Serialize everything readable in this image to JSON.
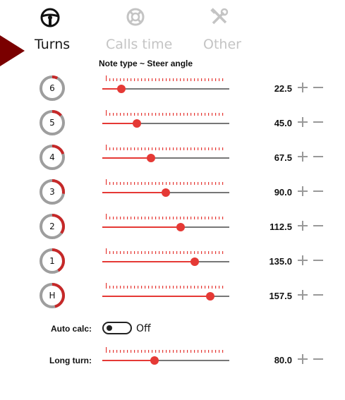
{
  "tabs": [
    {
      "label": "Turns",
      "icon": "steering-wheel-icon",
      "active": true
    },
    {
      "label": "Calls time",
      "icon": "lifebuoy-icon",
      "active": false
    },
    {
      "label": "Other",
      "icon": "tools-icon",
      "active": false
    }
  ],
  "section_title": "Note type ~ Steer angle",
  "colors": {
    "accent": "#e53935",
    "dark_red": "#b71c1c",
    "pointer": "#7a0000",
    "track": "#777777",
    "ring_gray": "#9e9e9e"
  },
  "turn_rows": [
    {
      "badge": "6",
      "value": "22.5",
      "fraction": 0.15
    },
    {
      "badge": "5",
      "value": "45.0",
      "fraction": 0.27
    },
    {
      "badge": "4",
      "value": "67.5",
      "fraction": 0.385
    },
    {
      "badge": "3",
      "value": "90.0",
      "fraction": 0.5
    },
    {
      "badge": "2",
      "value": "112.5",
      "fraction": 0.615
    },
    {
      "badge": "1",
      "value": "135.0",
      "fraction": 0.73
    },
    {
      "badge": "H",
      "value": "157.5",
      "fraction": 0.85
    }
  ],
  "auto_calc": {
    "label": "Auto calc:",
    "state": "Off",
    "on": false
  },
  "long_turn": {
    "label": "Long turn:",
    "value": "80.0",
    "fraction": 0.41
  }
}
